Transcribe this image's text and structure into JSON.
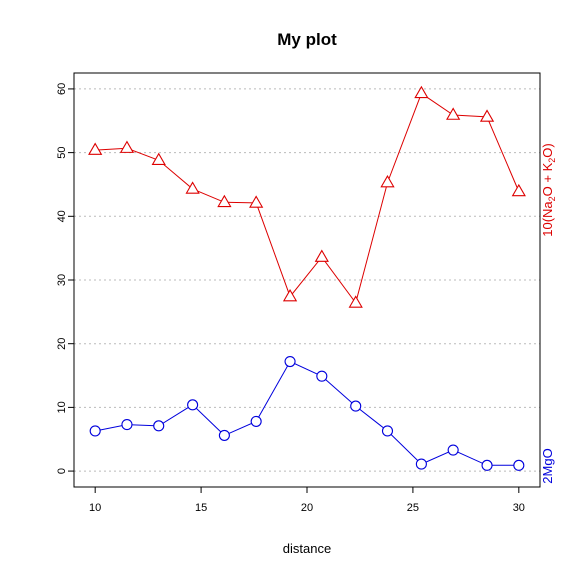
{
  "chart_data": {
    "type": "line",
    "title": "My plot",
    "xlabel": "distance",
    "ylabel": "",
    "xlim": [
      9,
      31
    ],
    "ylim": [
      -2.5,
      62.5
    ],
    "x_ticks": [
      10,
      15,
      20,
      25,
      30
    ],
    "y_ticks": [
      0,
      10,
      20,
      30,
      40,
      50,
      60
    ],
    "grid": "horizontal dotted",
    "x": [
      10,
      11.5,
      13,
      14.6,
      16.1,
      17.6,
      19.2,
      20.7,
      22.3,
      23.8,
      25.4,
      26.9,
      28.5,
      30
    ],
    "series": [
      {
        "label_main": "10(Na",
        "label_sub1": "2",
        "label_mid": "O + K",
        "label_sub2": "2",
        "label_end": "O)",
        "color": "#dd0000",
        "marker": "triangle",
        "values": [
          50.4,
          50.7,
          48.8,
          44.3,
          42.2,
          42.1,
          27.4,
          33.6,
          26.4,
          45.3,
          59.3,
          55.9,
          55.6,
          43.9
        ]
      },
      {
        "label": "2MgO",
        "color": "#0000dd",
        "marker": "circle",
        "values": [
          6.3,
          7.3,
          7.1,
          10.4,
          5.6,
          7.8,
          17.2,
          14.9,
          10.2,
          6.3,
          1.1,
          3.3,
          0.9,
          0.9
        ]
      }
    ]
  }
}
